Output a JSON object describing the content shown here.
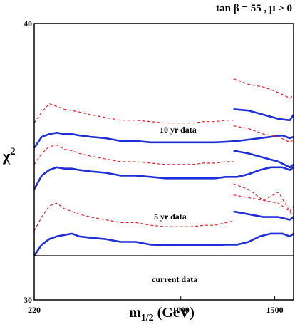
{
  "chart_data": {
    "type": "line",
    "title": "tan β = 55 ,  μ > 0",
    "xlabel": "m",
    "xlabel_sub": "1/2",
    "xlabel_unit": " (GeV)",
    "ylabel": "χ",
    "ylabel_sup": "2",
    "xlim": [
      220,
      1600
    ],
    "ylim": [
      30,
      40
    ],
    "x_ticks": [
      220,
      1000,
      1500
    ],
    "y_ticks": [
      30,
      40
    ],
    "grid": false,
    "annotations": {
      "current": "current data",
      "five_yr": "5 yr data",
      "ten_yr": "10 yr data"
    },
    "colors": {
      "central": "#1f2fd6",
      "band": "#e8202a",
      "baseline": "#000000",
      "axis": "#000000"
    },
    "current_data_chi2": 31.6,
    "series": [
      {
        "group": "current",
        "style": "solid",
        "x": [
          220,
          260,
          300,
          340,
          380,
          420,
          460,
          520,
          600,
          680,
          760,
          840,
          920,
          1000,
          1060,
          1120,
          1180,
          1240,
          1300,
          1360,
          1420,
          1480,
          1540,
          1580,
          1600
        ],
        "y": [
          31.6,
          32.0,
          32.2,
          32.3,
          32.35,
          32.4,
          32.3,
          32.25,
          32.2,
          32.1,
          32.1,
          32.0,
          31.98,
          31.98,
          31.98,
          31.98,
          31.98,
          32.0,
          32.0,
          32.1,
          32.3,
          32.4,
          32.4,
          32.3,
          32.4
        ]
      },
      {
        "group": "current",
        "style": "solid",
        "x": [
          1280,
          1360,
          1440,
          1520,
          1580,
          1600
        ],
        "y": [
          33.2,
          33.1,
          33.0,
          33.0,
          32.9,
          33.0
        ]
      },
      {
        "group": "current",
        "style": "dashed",
        "x": [
          220,
          260,
          300,
          340,
          380,
          420,
          460,
          520,
          600,
          680,
          760,
          840,
          920,
          1000,
          1060,
          1120,
          1180,
          1240,
          1280
        ],
        "y": [
          32.5,
          33.0,
          33.4,
          33.5,
          33.3,
          33.2,
          33.1,
          33.0,
          32.9,
          32.8,
          32.8,
          32.7,
          32.65,
          32.65,
          32.65,
          32.7,
          32.7,
          32.8,
          32.85
        ]
      },
      {
        "group": "current",
        "style": "dashed",
        "x": [
          1280,
          1360,
          1440,
          1520,
          1580,
          1600
        ],
        "y": [
          33.8,
          33.7,
          33.6,
          33.5,
          33.2,
          33.4
        ]
      },
      {
        "group": "five_yr",
        "style": "solid",
        "x": [
          220,
          260,
          300,
          340,
          380,
          420,
          460,
          520,
          600,
          680,
          760,
          840,
          920,
          1000,
          1060,
          1120,
          1180,
          1240,
          1300,
          1360,
          1420,
          1480,
          1540,
          1580,
          1600
        ],
        "y": [
          34.0,
          34.5,
          34.7,
          34.8,
          34.75,
          34.75,
          34.7,
          34.65,
          34.6,
          34.5,
          34.5,
          34.45,
          34.4,
          34.4,
          34.4,
          34.4,
          34.4,
          34.45,
          34.45,
          34.55,
          34.7,
          34.8,
          34.8,
          34.7,
          34.8
        ]
      },
      {
        "group": "five_yr",
        "style": "solid",
        "x": [
          1280,
          1360,
          1440,
          1520,
          1580,
          1600
        ],
        "y": [
          35.4,
          35.3,
          35.15,
          35.0,
          34.8,
          34.9
        ]
      },
      {
        "group": "five_yr",
        "style": "dashed",
        "x": [
          220,
          260,
          300,
          340,
          380,
          420,
          460,
          520,
          600,
          680,
          760,
          840,
          920,
          1000,
          1060,
          1120,
          1180,
          1240,
          1280
        ],
        "y": [
          34.9,
          35.3,
          35.55,
          35.6,
          35.45,
          35.4,
          35.3,
          35.2,
          35.1,
          35.0,
          35.0,
          34.95,
          34.9,
          34.9,
          34.9,
          34.95,
          34.95,
          35.0,
          35.0
        ]
      },
      {
        "group": "five_yr",
        "style": "dashed",
        "x": [
          1280,
          1360,
          1440,
          1520,
          1580,
          1600
        ],
        "y": [
          34.2,
          34.0,
          33.6,
          33.9,
          33.2,
          33.0
        ]
      },
      {
        "group": "ten_yr",
        "style": "solid",
        "x": [
          220,
          260,
          300,
          340,
          380,
          420,
          460,
          520,
          600,
          680,
          760,
          840,
          920,
          1000,
          1060,
          1120,
          1180,
          1240,
          1300,
          1360,
          1420,
          1480,
          1540,
          1580,
          1600
        ],
        "y": [
          35.5,
          35.9,
          36.0,
          36.05,
          36.0,
          36.0,
          35.95,
          35.9,
          35.85,
          35.75,
          35.75,
          35.7,
          35.7,
          35.7,
          35.7,
          35.7,
          35.7,
          35.72,
          35.75,
          35.8,
          35.85,
          35.9,
          35.95,
          35.85,
          35.9
        ]
      },
      {
        "group": "ten_yr",
        "style": "solid",
        "x": [
          1280,
          1360,
          1440,
          1520,
          1580,
          1600
        ],
        "y": [
          36.9,
          36.85,
          36.7,
          36.55,
          36.5,
          36.7
        ]
      },
      {
        "group": "ten_yr",
        "style": "dashed",
        "x": [
          220,
          260,
          300,
          340,
          380,
          420,
          460,
          520,
          600,
          680,
          760,
          840,
          920,
          1000,
          1060,
          1120,
          1180,
          1240,
          1280
        ],
        "y": [
          36.4,
          36.8,
          37.1,
          37.0,
          36.9,
          36.85,
          36.8,
          36.7,
          36.6,
          36.5,
          36.5,
          36.45,
          36.4,
          36.4,
          36.4,
          36.45,
          36.45,
          36.5,
          36.5
        ]
      },
      {
        "group": "ten_yr",
        "style": "dashed",
        "x": [
          1280,
          1360,
          1440,
          1520,
          1580,
          1600
        ],
        "y": [
          38.0,
          37.8,
          37.7,
          37.5,
          37.3,
          37.4
        ]
      },
      {
        "group": "five_yr",
        "style": "dashed",
        "x": [
          1280,
          1360,
          1440,
          1520,
          1580,
          1600
        ],
        "y": [
          36.3,
          36.2,
          36.0,
          35.9,
          35.7,
          35.8
        ]
      }
    ]
  }
}
